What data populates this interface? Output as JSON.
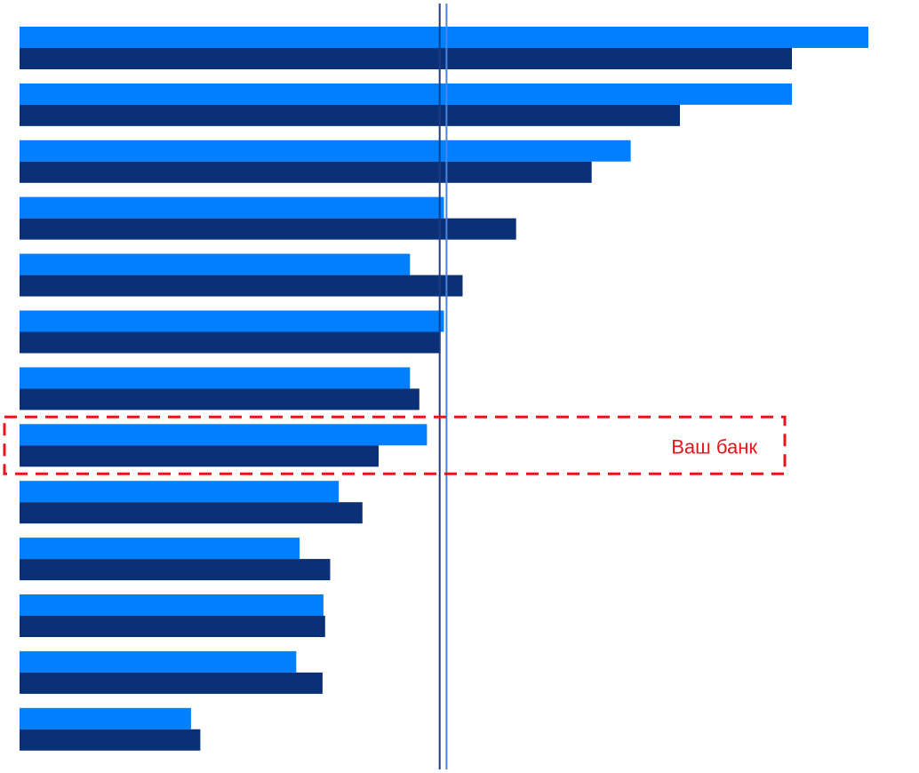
{
  "chart_data": {
    "type": "bar",
    "orientation": "horizontal",
    "title": "",
    "xlabel": "",
    "ylabel": "",
    "xlim": [
      0,
      1000
    ],
    "grid": false,
    "legend": "none",
    "series": [
      {
        "color": "#0080FF",
        "values": [
          1000,
          910,
          720,
          500,
          460,
          500,
          460,
          480,
          376,
          330,
          358,
          326,
          202
        ]
      },
      {
        "color": "#0A3177",
        "values": [
          910,
          778,
          674,
          585,
          522,
          496,
          471,
          423,
          404,
          366,
          360,
          357,
          213
        ]
      }
    ],
    "reference_lines": [
      {
        "value": 495,
        "color": "#1F3C88"
      },
      {
        "value": 503,
        "color": "#4A86E0"
      }
    ],
    "highlight": {
      "label": "Ваш банк",
      "row_index": 7,
      "color": "#E8141B"
    }
  }
}
